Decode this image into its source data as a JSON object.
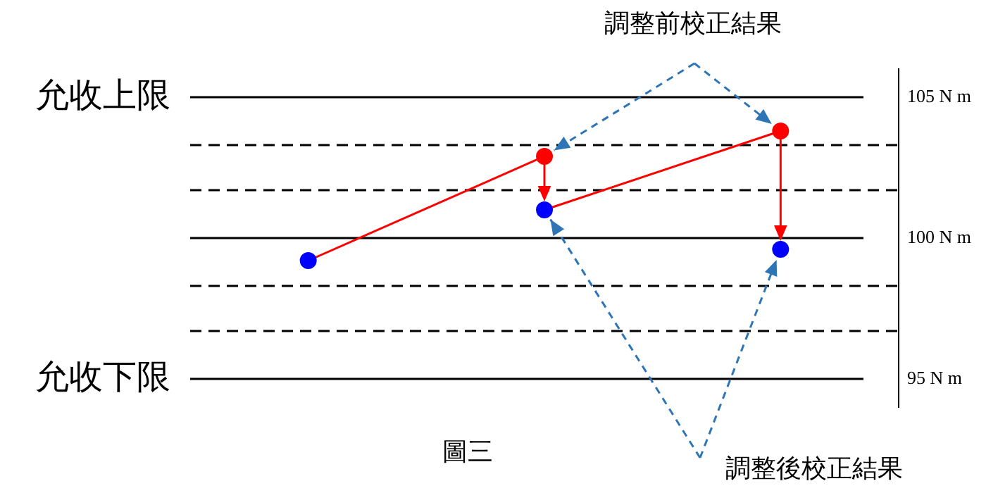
{
  "chart_data": {
    "type": "line",
    "title": "圖三",
    "categories": [
      null,
      null,
      null
    ],
    "ylim": [
      94,
      106
    ],
    "yticks": [
      {
        "value": 95,
        "label": "95 N m"
      },
      {
        "value": 100,
        "label": "100 N m"
      },
      {
        "value": 105,
        "label": "105 N m"
      }
    ],
    "tick_labels": "y",
    "grid": false,
    "legend": false,
    "series": [
      {
        "type": "line",
        "color": "#ff0000",
        "values": [
          99.2,
          102.9,
          null
        ]
      },
      {
        "type": "line",
        "color": "#ff0000",
        "values": [
          null,
          101.0,
          103.8
        ]
      },
      {
        "type": "scatter",
        "name": "調整前校正結果",
        "color": "#ff0000",
        "values": [
          null,
          102.9,
          103.8
        ],
        "marker": "circle"
      },
      {
        "type": "scatter",
        "name": "調整後校正結果",
        "color": "#0000ff",
        "values": [
          99.2,
          101.0,
          99.6
        ],
        "marker": "circle"
      }
    ],
    "ref_lines": [
      {
        "axis": "y",
        "value": 105,
        "label": "允收上限",
        "color": "#000000",
        "line_style": "solid"
      },
      {
        "axis": "y",
        "value": 103.3,
        "color": "#000000",
        "line_style": "dashed"
      },
      {
        "axis": "y",
        "value": 101.7,
        "color": "#000000",
        "line_style": "dashed"
      },
      {
        "axis": "y",
        "value": 100,
        "color": "#000000",
        "line_style": "solid"
      },
      {
        "axis": "y",
        "value": 98.3,
        "color": "#000000",
        "line_style": "dashed"
      },
      {
        "axis": "y",
        "value": 96.7,
        "color": "#000000",
        "line_style": "dashed"
      },
      {
        "axis": "y",
        "value": 95,
        "label": "允收下限",
        "color": "#000000",
        "line_style": "solid"
      }
    ]
  }
}
